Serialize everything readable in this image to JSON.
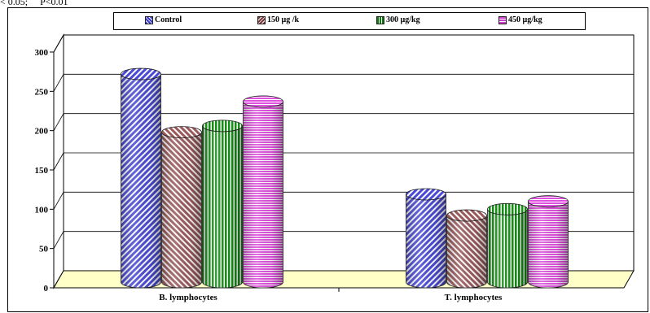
{
  "note_text": "< 0.05;     P<0.01",
  "colors": {
    "control": "#6b6bdc",
    "dose150": "#c79a9c",
    "dose300": "#2f9b2f",
    "dose450": "#e37ee3",
    "floor": "#ffffc8",
    "wall": "#ffffff"
  },
  "chart_data": {
    "type": "bar",
    "categories": [
      "B. lymphocytes",
      "T. lymphocytes"
    ],
    "series": [
      {
        "name": "Control",
        "values": [
          272,
          119
        ]
      },
      {
        "name": "150 µg /k",
        "values": [
          198,
          92
        ]
      },
      {
        "name": "300 µg/kg",
        "values": [
          206,
          100
        ]
      },
      {
        "name": "450 µg/kg",
        "values": [
          237,
          110
        ]
      }
    ],
    "yticks": [
      0,
      50,
      100,
      150,
      200,
      250,
      300
    ],
    "ylim": [
      0,
      300
    ],
    "grid": true,
    "legend_position": "top",
    "style": "3d-cylinder"
  }
}
